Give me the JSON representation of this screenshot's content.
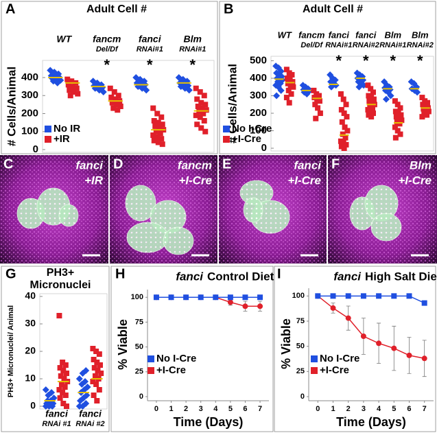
{
  "chart_data": [
    {
      "type": "strip",
      "panel": "A",
      "title": "Adult Cell #",
      "ylabel": "# Cells/Animal",
      "categories": [
        "WT",
        "fancm",
        "fanci",
        "Blm"
      ],
      "category_sublabels": [
        null,
        "Del/Df",
        "RNAi#1",
        "RNAi#1"
      ],
      "significance": [
        null,
        "*",
        "*",
        "*"
      ],
      "series": [
        {
          "name": "No IR",
          "color": "#1f4fe0",
          "values": [
            [
              440,
              430,
              420,
              410,
              405,
              400,
              395,
              390,
              385,
              380,
              370
            ],
            [
              380,
              370,
              360,
              355,
              350,
              345,
              340,
              330,
              320
            ],
            [
              400,
              390,
              380,
              370,
              365,
              360,
              350,
              340,
              330
            ],
            [
              400,
              390,
              380,
              370,
              360,
              355,
              350,
              340,
              330
            ]
          ],
          "means": [
            400,
            350,
            360,
            370
          ]
        },
        {
          "name": "+IR",
          "color": "#e0202a",
          "values": [
            [
              390,
              380,
              370,
              360,
              350,
              340,
              330,
              320,
              310,
              300
            ],
            [
              340,
              320,
              300,
              290,
              280,
              270,
              260,
              250,
              240,
              230,
              220
            ],
            [
              230,
              200,
              180,
              160,
              150,
              140,
              130,
              120,
              110,
              100,
              90,
              80,
              70,
              60,
              50,
              40,
              30
            ],
            [
              340,
              320,
              300,
              280,
              260,
              250,
              240,
              230,
              220,
              210,
              200,
              190,
              180,
              160,
              140,
              120,
              100
            ]
          ],
          "means": [
            370,
            270,
            110,
            215
          ]
        }
      ],
      "mean_color": "#e6c000",
      "ylim": [
        0,
        480
      ],
      "yticks": [
        0,
        100,
        200,
        300,
        400
      ],
      "legend": "lower left"
    },
    {
      "type": "strip",
      "panel": "B",
      "title": "Adult Cell #",
      "ylabel": "# Cells/Animal",
      "categories": [
        "WT",
        "fancm",
        "fanci",
        "fanci",
        "Blm",
        "Blm"
      ],
      "category_sublabels": [
        null,
        "Del/Df",
        "RNAi#1",
        "RNAi#2",
        "RNAi#1",
        "RNAi#2"
      ],
      "significance": [
        null,
        null,
        "*",
        "*",
        "*",
        "*"
      ],
      "series": [
        {
          "name": "No I-Cre",
          "color": "#1f4fe0",
          "values": [
            [
              470,
              460,
              440,
              430,
              420,
              410,
              400,
              395,
              390,
              380,
              370,
              360,
              350,
              330,
              300
            ],
            [
              360,
              350,
              340,
              335,
              330,
              325,
              320,
              310
            ],
            [
              420,
              400,
              390,
              380,
              370,
              360,
              350
            ],
            [
              430,
              420,
              410,
              400,
              395,
              390,
              380,
              370,
              360,
              350
            ],
            [
              380,
              360,
              350,
              345,
              340,
              335,
              330,
              320,
              300,
              280
            ],
            [
              380,
              370,
              350,
              340,
              330,
              320
            ]
          ],
          "means": [
            395,
            330,
            365,
            400,
            340,
            340
          ]
        },
        {
          "name": "+I-Cre",
          "color": "#e0202a",
          "values": [
            [
              450,
              430,
              420,
              400,
              390,
              380,
              370,
              360,
              350,
              330,
              310,
              290,
              260
            ],
            [
              330,
              310,
              300,
              290,
              280,
              270,
              250,
              230,
              200,
              170
            ],
            [
              310,
              280,
              250,
              220,
              200,
              180,
              150,
              120,
              100,
              80,
              60,
              40,
              30,
              20,
              10,
              0
            ],
            [
              360,
              340,
              320,
              300,
              290,
              280,
              270,
              260,
              250,
              240,
              230,
              220,
              210,
              200,
              190,
              180
            ],
            [
              270,
              250,
              230,
              210,
              200,
              190,
              180,
              170,
              160,
              150,
              140,
              120,
              100,
              80,
              60
            ],
            [
              290,
              270,
              260,
              250,
              240,
              230,
              225,
              220,
              210,
              200,
              190,
              180
            ]
          ],
          "means": [
            375,
            285,
            75,
            250,
            145,
            230
          ]
        }
      ],
      "mean_color": "#e6c000",
      "ylim": [
        0,
        510
      ],
      "yticks": [
        0,
        100,
        200,
        300,
        400,
        500
      ],
      "legend": "lower left"
    },
    {
      "type": "strip",
      "panel": "G",
      "title": "PH3+",
      "subtitle": "Micronuclei",
      "ylabel": "PH3+ Micronuclei/ Animal",
      "categories": [
        "fanci",
        "fanci"
      ],
      "category_sublabels": [
        "RNAi #1",
        "RNAi #2"
      ],
      "significance": [
        null,
        null
      ],
      "series": [
        {
          "color": "#1f4fe0",
          "values": [
            [
              0,
              0,
              0,
              1,
              1,
              1,
              2,
              2,
              3,
              4,
              5,
              6
            ],
            [
              0,
              0,
              1,
              2,
              3,
              4,
              5,
              6,
              7,
              8,
              9,
              10,
              12,
              13
            ]
          ],
          "means": [
            2,
            5
          ]
        },
        {
          "color": "#e0202a",
          "values": [
            [
              33,
              16,
              15,
              14,
              13,
              12,
              11,
              10,
              9,
              8,
              7,
              6,
              5,
              4,
              3,
              1,
              0
            ],
            [
              21,
              20,
              19,
              17,
              16,
              15,
              14,
              13,
              12,
              11,
              10,
              9,
              8,
              6,
              4,
              2
            ]
          ],
          "means": [
            9,
            10
          ]
        }
      ],
      "mean_color": "#e6c000",
      "ylim": [
        0,
        40
      ],
      "yticks": [
        0,
        10,
        20,
        30,
        40
      ]
    },
    {
      "type": "line",
      "panel": "H",
      "title_italic": "fanci",
      "title": "Control Diet",
      "xlabel": "Time (Days)",
      "ylabel": "% Viable",
      "x": [
        0,
        1,
        2,
        3,
        4,
        5,
        6,
        7
      ],
      "series": [
        {
          "name": "No I-Cre",
          "color": "#1f4fe0",
          "marker": "square",
          "values": [
            100,
            100,
            100,
            100,
            100,
            100,
            100,
            100
          ],
          "errors": [
            0,
            0,
            0,
            0,
            0,
            0,
            0,
            0
          ]
        },
        {
          "name": "+I-Cre",
          "color": "#e0202a",
          "marker": "circle",
          "values": [
            100,
            100,
            100,
            100,
            100,
            95,
            91,
            91
          ],
          "errors": [
            0,
            0,
            0,
            0,
            0,
            3,
            5,
            5
          ]
        }
      ],
      "xlim": [
        -0.6,
        7.6
      ],
      "xticks": [
        0,
        1,
        2,
        3,
        4,
        5,
        6,
        7
      ],
      "ylim": [
        0,
        105
      ],
      "yticks": [
        0,
        25,
        50,
        75,
        100
      ],
      "legend": "lower left"
    },
    {
      "type": "line",
      "panel": "I",
      "title_italic": "fanci",
      "title": "High Salt Diet",
      "xlabel": "Time (Days)",
      "ylabel": "% Viable",
      "x": [
        0,
        1,
        2,
        3,
        4,
        5,
        6,
        7
      ],
      "series": [
        {
          "name": "No I-Cre",
          "color": "#1f4fe0",
          "marker": "square",
          "values": [
            100,
            100,
            100,
            100,
            100,
            100,
            100,
            93
          ],
          "errors": [
            0,
            0,
            0,
            0,
            0,
            0,
            0,
            0
          ]
        },
        {
          "name": "+I-Cre",
          "color": "#e0202a",
          "marker": "circle",
          "values": [
            100,
            88,
            78,
            60,
            53,
            48,
            41,
            38
          ],
          "errors": [
            0,
            5,
            12,
            18,
            20,
            22,
            18,
            18
          ]
        }
      ],
      "xlim": [
        -0.6,
        7.6
      ],
      "xticks": [
        0,
        1,
        2,
        3,
        4,
        5,
        6,
        7
      ],
      "ylim": [
        0,
        105
      ],
      "yticks": [
        0,
        25,
        50,
        75,
        100
      ],
      "legend": "lower left"
    }
  ],
  "micrographs": [
    {
      "panel": "C",
      "gene": "fanci",
      "condition": "+IR"
    },
    {
      "panel": "D",
      "gene": "fancm",
      "condition": "+I-Cre"
    },
    {
      "panel": "E",
      "gene": "fanci",
      "condition": "+I-Cre"
    },
    {
      "panel": "F",
      "gene": "Blm",
      "condition": "+I-Cre"
    }
  ]
}
